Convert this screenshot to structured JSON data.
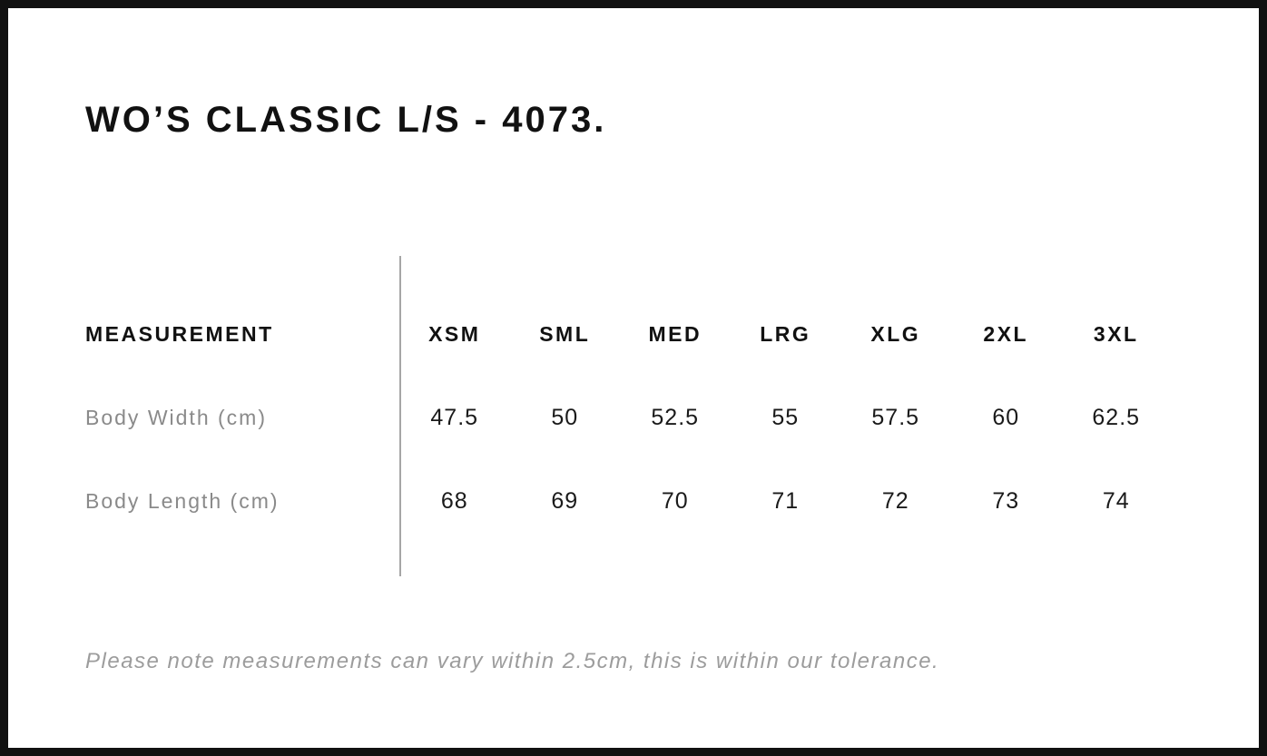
{
  "header": {
    "title": "WO’S CLASSIC L/S - 4073."
  },
  "table": {
    "measurement_header": "MEASUREMENT",
    "size_headers": [
      "XSM",
      "SML",
      "MED",
      "LRG",
      "XLG",
      "2XL",
      "3XL"
    ],
    "rows": [
      {
        "label": "Body Width (cm)",
        "values": [
          "47.5",
          "50",
          "52.5",
          "55",
          "57.5",
          "60",
          "62.5"
        ]
      },
      {
        "label": "Body Length (cm)",
        "values": [
          "68",
          "69",
          "70",
          "71",
          "72",
          "73",
          "74"
        ]
      }
    ]
  },
  "footer": {
    "note": "Please note measurements can vary within 2.5cm, this is within our tolerance."
  },
  "colors": {
    "background": "#ffffff",
    "frame_border": "#111111",
    "text_primary": "#111111",
    "row_label_gray": "#8a8a8a",
    "note_gray": "#9c9c9c",
    "divider_gray": "#a6a6a6"
  }
}
